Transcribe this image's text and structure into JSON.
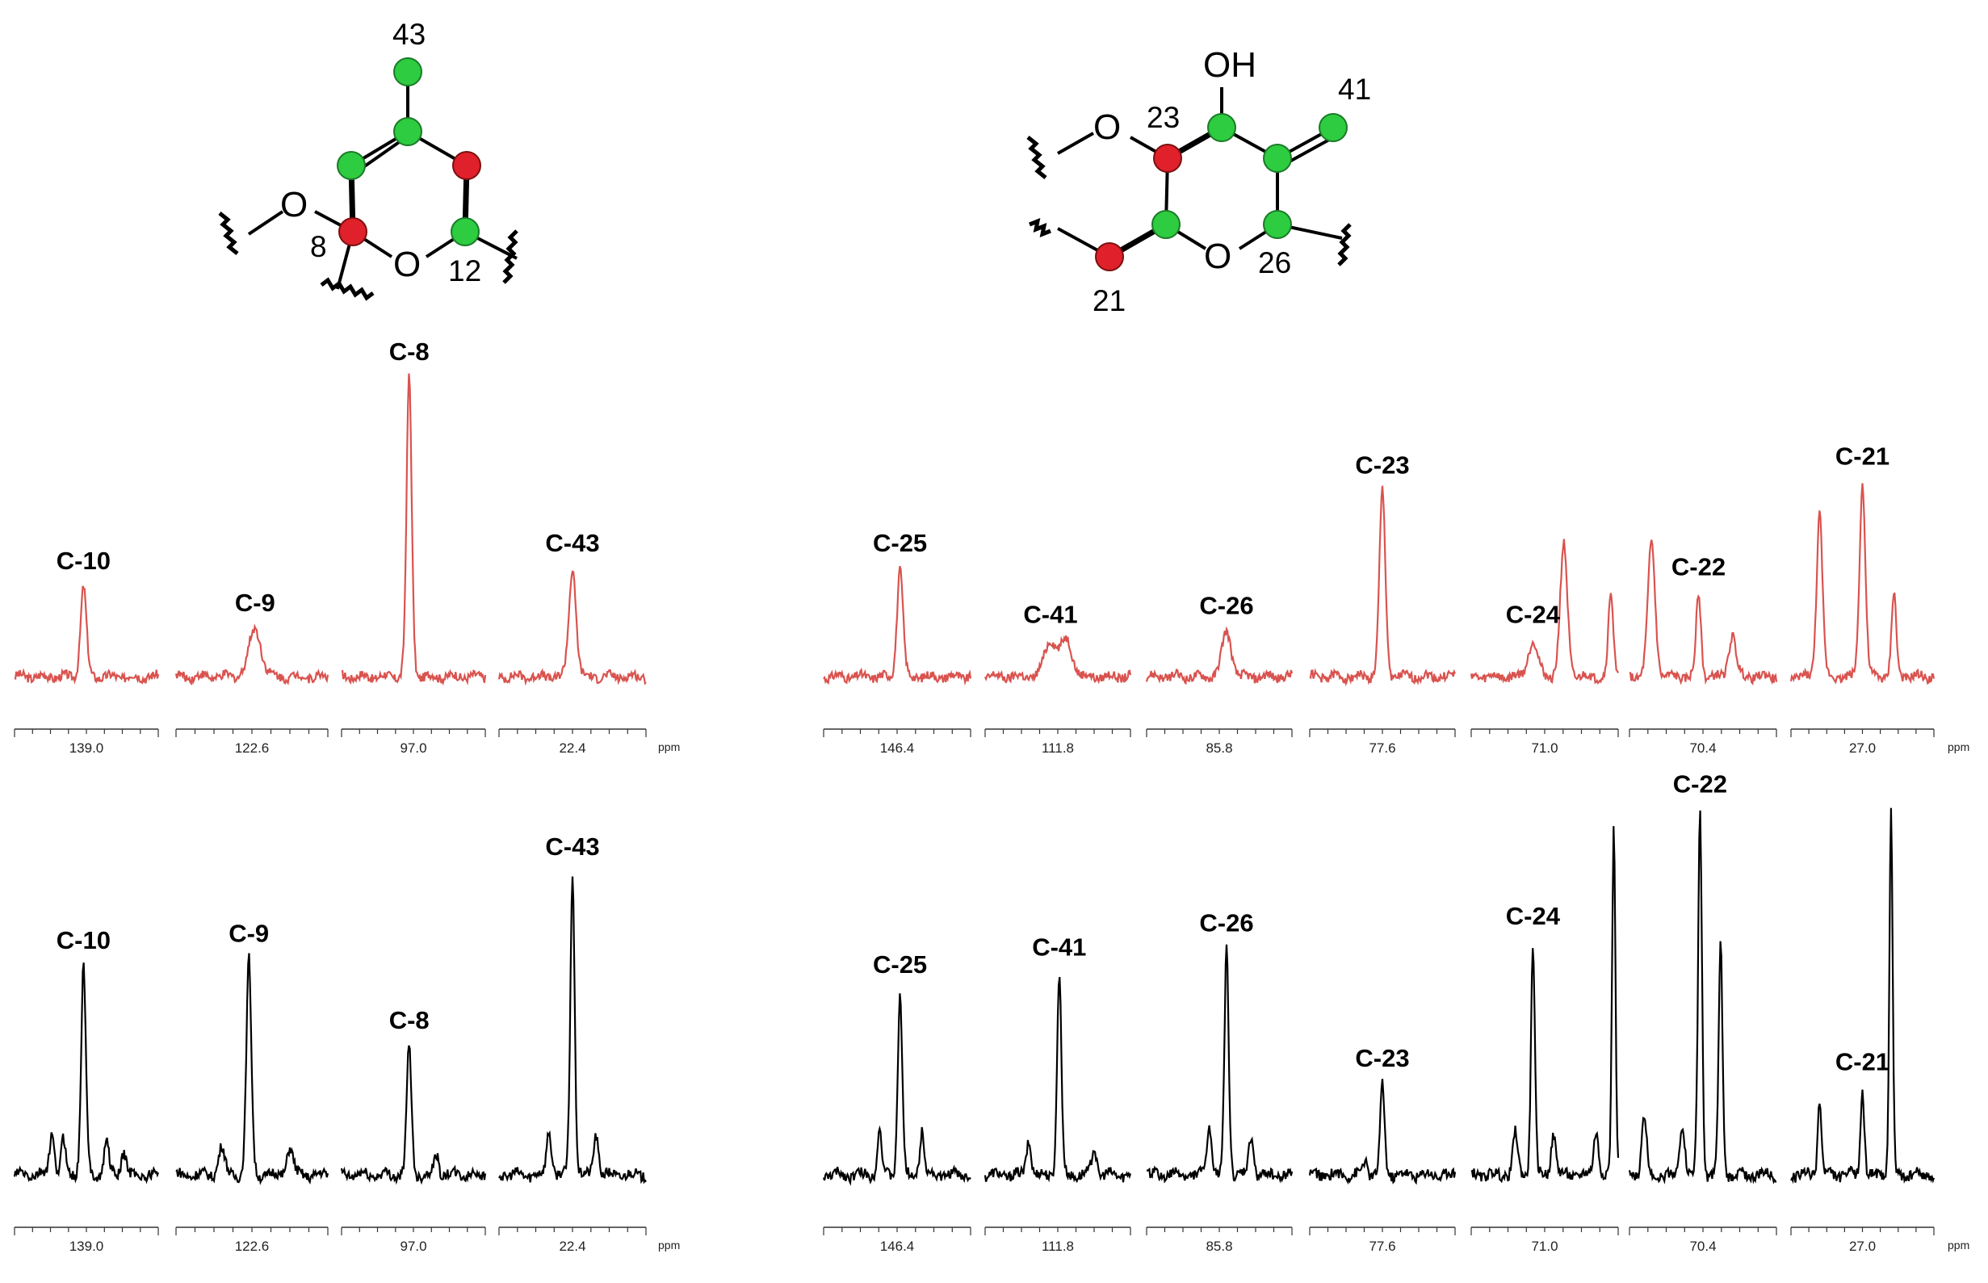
{
  "molecules": {
    "left": {
      "atom_labels": {
        "top": "43",
        "c8": "8",
        "c12": "12"
      },
      "heteroatoms": {
        "o_side": "O",
        "o_ring": "O"
      }
    },
    "right": {
      "atom_labels": {
        "c23": "23",
        "c41": "41",
        "c26": "26",
        "c21": "21"
      },
      "heteroatoms": {
        "oh": "OH",
        "o_side": "O",
        "o_ring": "O"
      }
    },
    "colors": {
      "labeled_carbon": "#2ecc40",
      "selected_carbon": "#e0202a"
    }
  },
  "chart_data": [
    {
      "type": "line",
      "name_key": "top-row-spectra",
      "color": "#d9534f",
      "unit": "ppm",
      "panels": [
        {
          "label": "C-10",
          "tick": "139.0",
          "peaks": [
            {
              "x": 0.48,
              "h": 0.3,
              "w": 0.025
            }
          ]
        },
        {
          "label": "C-9",
          "tick": "122.6",
          "peaks": [
            {
              "x": 0.52,
              "h": 0.16,
              "w": 0.05
            }
          ]
        },
        {
          "label": "C-8",
          "tick": "97.0",
          "peaks": [
            {
              "x": 0.47,
              "h": 1.0,
              "w": 0.022
            }
          ]
        },
        {
          "label": "C-43",
          "tick": "22.4",
          "peaks": [
            {
              "x": 0.5,
              "h": 0.36,
              "w": 0.03
            }
          ]
        },
        {
          "label": "C-25",
          "tick": "146.4",
          "peaks": [
            {
              "x": 0.52,
              "h": 0.36,
              "w": 0.025
            }
          ]
        },
        {
          "label": "C-41",
          "tick": "111.8",
          "peaks": [
            {
              "x": 0.45,
              "h": 0.12,
              "w": 0.05
            },
            {
              "x": 0.56,
              "h": 0.12,
              "w": 0.05
            }
          ]
        },
        {
          "label": "C-26",
          "tick": "85.8",
          "peaks": [
            {
              "x": 0.55,
              "h": 0.15,
              "w": 0.04
            }
          ]
        },
        {
          "label": "C-23",
          "tick": "77.6",
          "peaks": [
            {
              "x": 0.5,
              "h": 0.62,
              "w": 0.025
            }
          ]
        },
        {
          "label": "C-24",
          "tick": "71.0",
          "peaks": [
            {
              "x": 0.42,
              "h": 0.12,
              "w": 0.04
            },
            {
              "x": 0.63,
              "h": 0.44,
              "w": 0.03
            },
            {
              "x": 0.95,
              "h": 0.28,
              "w": 0.02
            }
          ]
        },
        {
          "label": "C-22",
          "tick": "70.4",
          "peaks": [
            {
              "x": 0.15,
              "h": 0.45,
              "w": 0.03
            },
            {
              "x": 0.47,
              "h": 0.28,
              "w": 0.02
            },
            {
              "x": 0.7,
              "h": 0.14,
              "w": 0.03
            }
          ]
        },
        {
          "label": "C-21",
          "tick": "27.0",
          "peaks": [
            {
              "x": 0.2,
              "h": 0.55,
              "w": 0.025
            },
            {
              "x": 0.5,
              "h": 0.65,
              "w": 0.025
            },
            {
              "x": 0.72,
              "h": 0.28,
              "w": 0.02
            }
          ]
        }
      ]
    },
    {
      "type": "line",
      "name_key": "bottom-row-spectra",
      "color": "#000000",
      "unit": "ppm",
      "panels": [
        {
          "label": "C-10",
          "tick": "139.0",
          "peaks": [
            {
              "x": 0.26,
              "h": 0.12,
              "w": 0.02
            },
            {
              "x": 0.34,
              "h": 0.1,
              "w": 0.02
            },
            {
              "x": 0.48,
              "h": 0.6,
              "w": 0.02
            },
            {
              "x": 0.64,
              "h": 0.1,
              "w": 0.02
            },
            {
              "x": 0.76,
              "h": 0.07,
              "w": 0.02
            }
          ]
        },
        {
          "label": "C-9",
          "tick": "122.6",
          "peaks": [
            {
              "x": 0.3,
              "h": 0.08,
              "w": 0.025
            },
            {
              "x": 0.48,
              "h": 0.62,
              "w": 0.02
            },
            {
              "x": 0.75,
              "h": 0.08,
              "w": 0.025
            }
          ]
        },
        {
          "label": "C-8",
          "tick": "97.0",
          "peaks": [
            {
              "x": 0.47,
              "h": 0.37,
              "w": 0.02
            },
            {
              "x": 0.66,
              "h": 0.06,
              "w": 0.02
            }
          ]
        },
        {
          "label": "C-43",
          "tick": "22.4",
          "peaks": [
            {
              "x": 0.34,
              "h": 0.13,
              "w": 0.02
            },
            {
              "x": 0.5,
              "h": 0.87,
              "w": 0.018
            },
            {
              "x": 0.66,
              "h": 0.12,
              "w": 0.02
            }
          ]
        },
        {
          "label": "C-25",
          "tick": "146.4",
          "peaks": [
            {
              "x": 0.38,
              "h": 0.13,
              "w": 0.018
            },
            {
              "x": 0.52,
              "h": 0.53,
              "w": 0.018
            },
            {
              "x": 0.67,
              "h": 0.13,
              "w": 0.018
            }
          ]
        },
        {
          "label": "C-41",
          "tick": "111.8",
          "peaks": [
            {
              "x": 0.3,
              "h": 0.1,
              "w": 0.02
            },
            {
              "x": 0.51,
              "h": 0.58,
              "w": 0.018
            },
            {
              "x": 0.75,
              "h": 0.08,
              "w": 0.02
            }
          ]
        },
        {
          "label": "C-26",
          "tick": "85.8",
          "peaks": [
            {
              "x": 0.43,
              "h": 0.14,
              "w": 0.02
            },
            {
              "x": 0.55,
              "h": 0.65,
              "w": 0.018
            },
            {
              "x": 0.72,
              "h": 0.11,
              "w": 0.02
            }
          ]
        },
        {
          "label": "C-23",
          "tick": "77.6",
          "peaks": [
            {
              "x": 0.38,
              "h": 0.04,
              "w": 0.02
            },
            {
              "x": 0.5,
              "h": 0.26,
              "w": 0.018
            }
          ]
        },
        {
          "label": "C-24",
          "tick": "71.0",
          "peaks": [
            {
              "x": 0.3,
              "h": 0.12,
              "w": 0.02
            },
            {
              "x": 0.42,
              "h": 0.67,
              "w": 0.016
            },
            {
              "x": 0.56,
              "h": 0.12,
              "w": 0.02
            },
            {
              "x": 0.85,
              "h": 0.13,
              "w": 0.02
            },
            {
              "x": 0.97,
              "h": 1.0,
              "w": 0.014
            }
          ]
        },
        {
          "label": "C-22",
          "tick": "70.4",
          "peaks": [
            {
              "x": 0.1,
              "h": 0.17,
              "w": 0.02
            },
            {
              "x": 0.36,
              "h": 0.15,
              "w": 0.02
            },
            {
              "x": 0.48,
              "h": 1.05,
              "w": 0.016
            },
            {
              "x": 0.62,
              "h": 0.66,
              "w": 0.016
            }
          ]
        },
        {
          "label": "C-21",
          "tick": "27.0",
          "peaks": [
            {
              "x": 0.2,
              "h": 0.22,
              "w": 0.016
            },
            {
              "x": 0.5,
              "h": 0.25,
              "w": 0.016
            },
            {
              "x": 0.7,
              "h": 1.05,
              "w": 0.014
            }
          ]
        }
      ]
    }
  ]
}
